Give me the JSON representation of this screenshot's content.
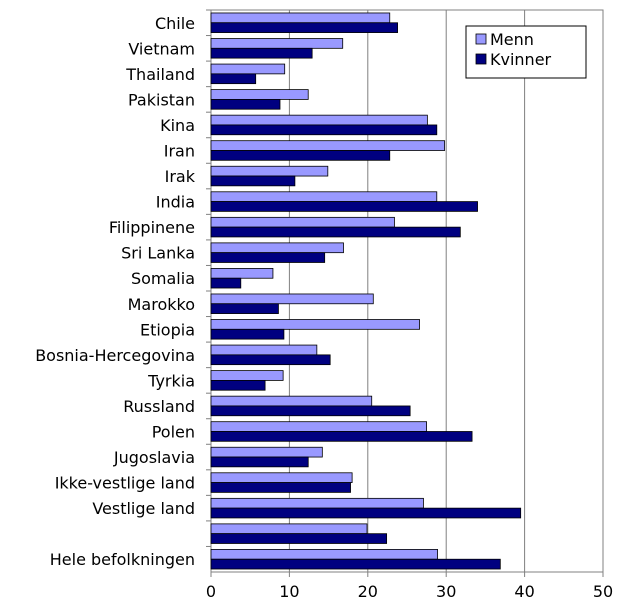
{
  "chart_data": {
    "type": "bar",
    "orientation": "horizontal",
    "categories": [
      "Chile",
      "Vietnam",
      "Thailand",
      "Pakistan",
      "Kina",
      "Iran",
      "Irak",
      "India",
      "Filippinene",
      "Sri Lanka",
      "Somalia",
      "Marokko",
      "Etiopia",
      "Bosnia-Hercegovina",
      "Tyrkia",
      "Russland",
      "Polen",
      "Jugoslavia",
      "Ikke-vestlige land",
      "Vestlige land",
      "",
      "Hele befolkningen"
    ],
    "series": [
      {
        "name": "Menn",
        "color": "#9999ff",
        "values": [
          22.8,
          16.8,
          9.4,
          12.4,
          27.6,
          29.8,
          14.9,
          28.8,
          23.4,
          16.9,
          7.9,
          20.7,
          26.6,
          13.5,
          9.2,
          20.5,
          27.5,
          14.2,
          18.0,
          27.1,
          19.9,
          28.9
        ]
      },
      {
        "name": "Kvinner",
        "color": "#000080",
        "values": [
          23.8,
          12.9,
          5.7,
          8.8,
          28.8,
          22.8,
          10.7,
          34.0,
          31.8,
          14.5,
          3.8,
          8.6,
          9.3,
          15.2,
          6.9,
          25.4,
          33.3,
          12.4,
          17.8,
          39.5,
          22.4,
          36.9
        ]
      }
    ],
    "xlim": [
      0,
      50
    ],
    "xticks": [
      "0",
      "10",
      "20",
      "30",
      "40",
      "50"
    ],
    "grid": "vertical",
    "legend_position": "top-right"
  }
}
